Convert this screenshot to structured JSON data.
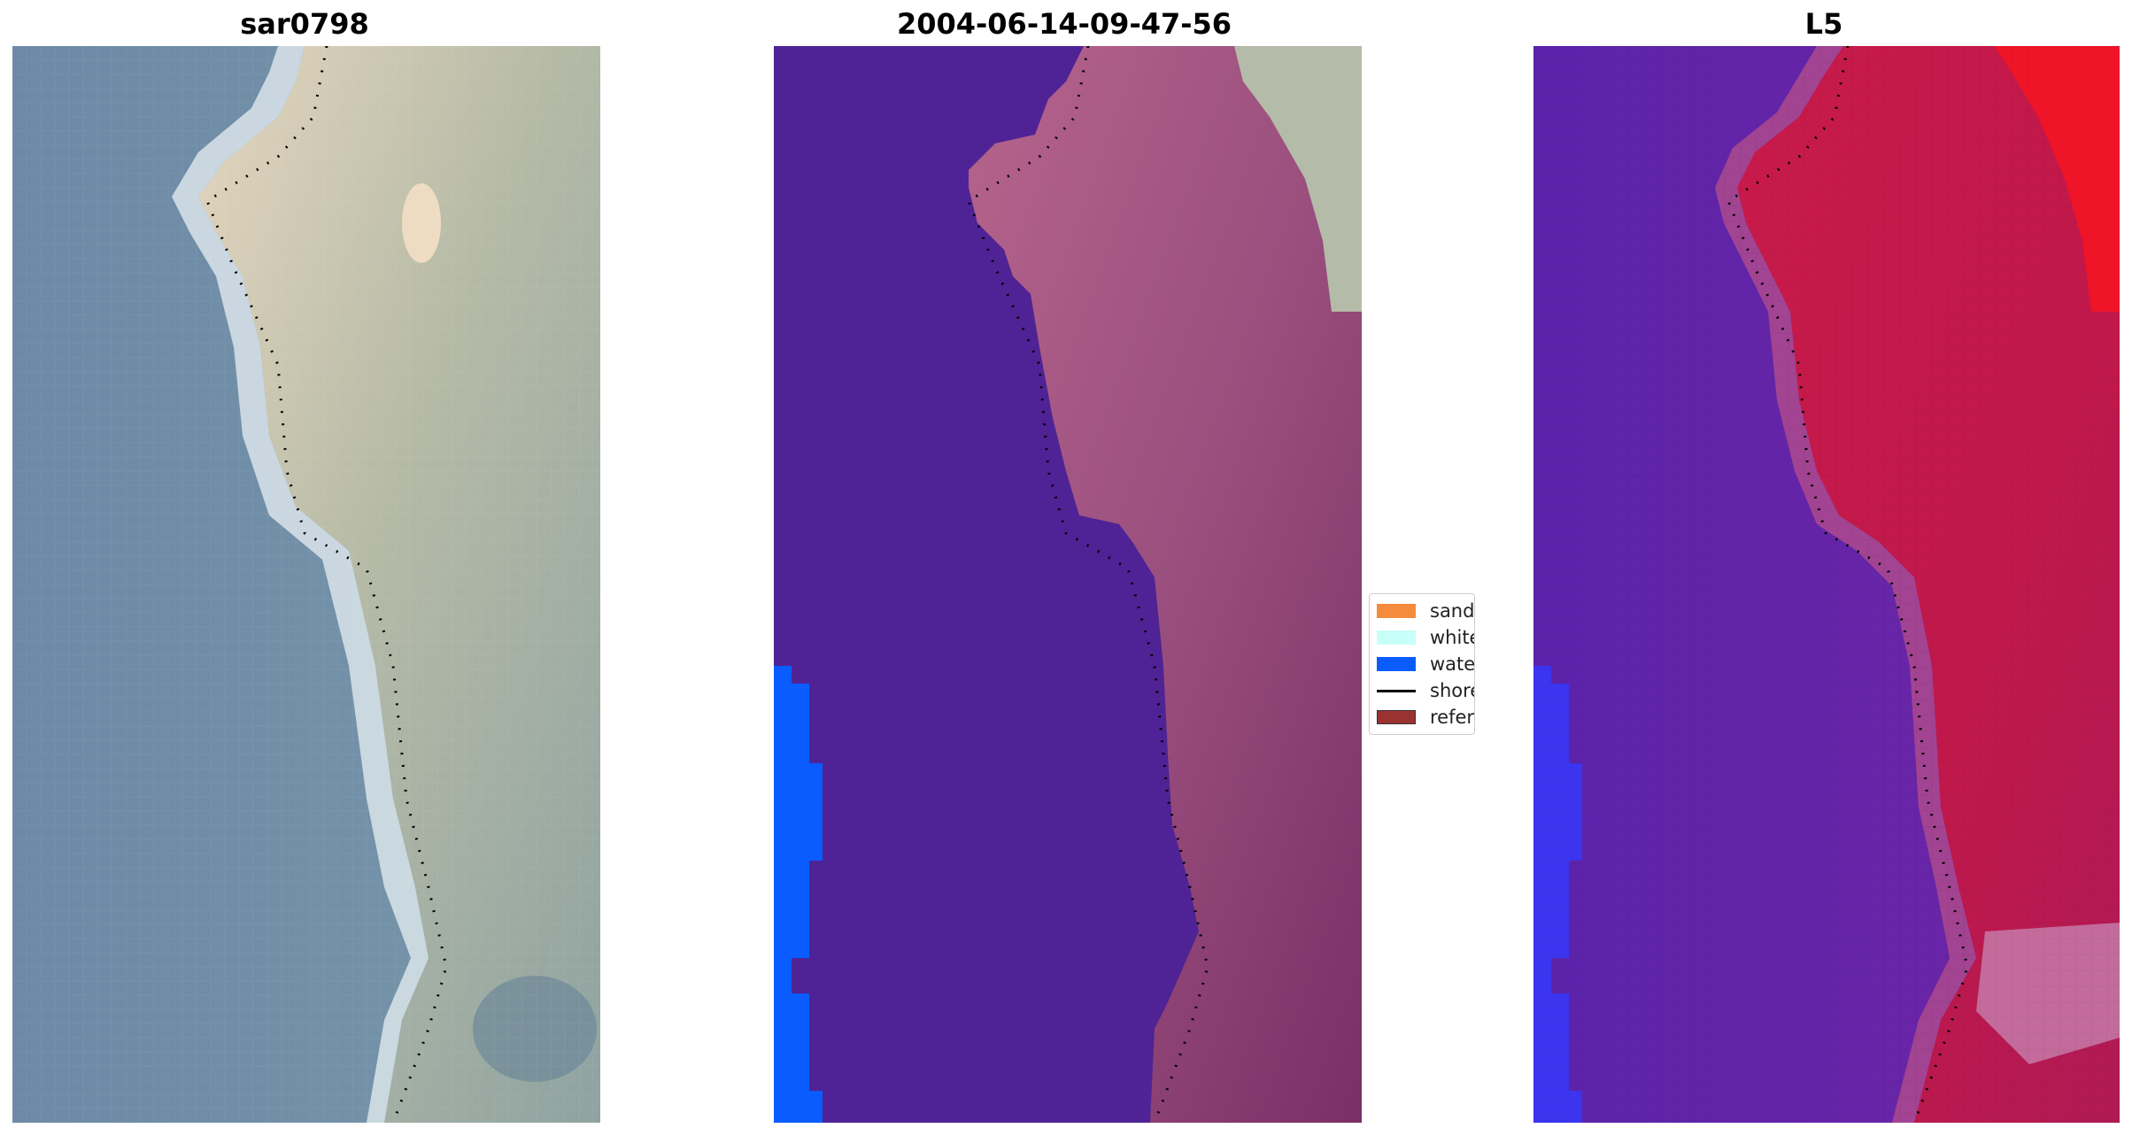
{
  "panels": {
    "rgb": {
      "title": "sar0798"
    },
    "classification": {
      "title": "2004-06-14-09-47-56"
    },
    "index": {
      "title": "L5"
    }
  },
  "legend": {
    "items": [
      {
        "label": "sand",
        "kind": "patch",
        "color": "#f58b3c"
      },
      {
        "label": "whitewater",
        "kind": "patch",
        "color": "#c8fff8"
      },
      {
        "label": "water",
        "kind": "patch",
        "color": "#0a5cff"
      },
      {
        "label": "shoreline",
        "kind": "line",
        "color": "#000000"
      },
      {
        "label": "reference shoreline",
        "kind": "patch",
        "color": "#9b3232"
      }
    ]
  },
  "colors": {
    "rgb_water": "#6e8aa8",
    "rgb_land": "#a9b59f",
    "class_water": "#4f2395",
    "class_land": "#9a4f7e",
    "class_surf": "#0a5cff",
    "index_water": "#6a24a8",
    "index_land": "#c51a48"
  }
}
